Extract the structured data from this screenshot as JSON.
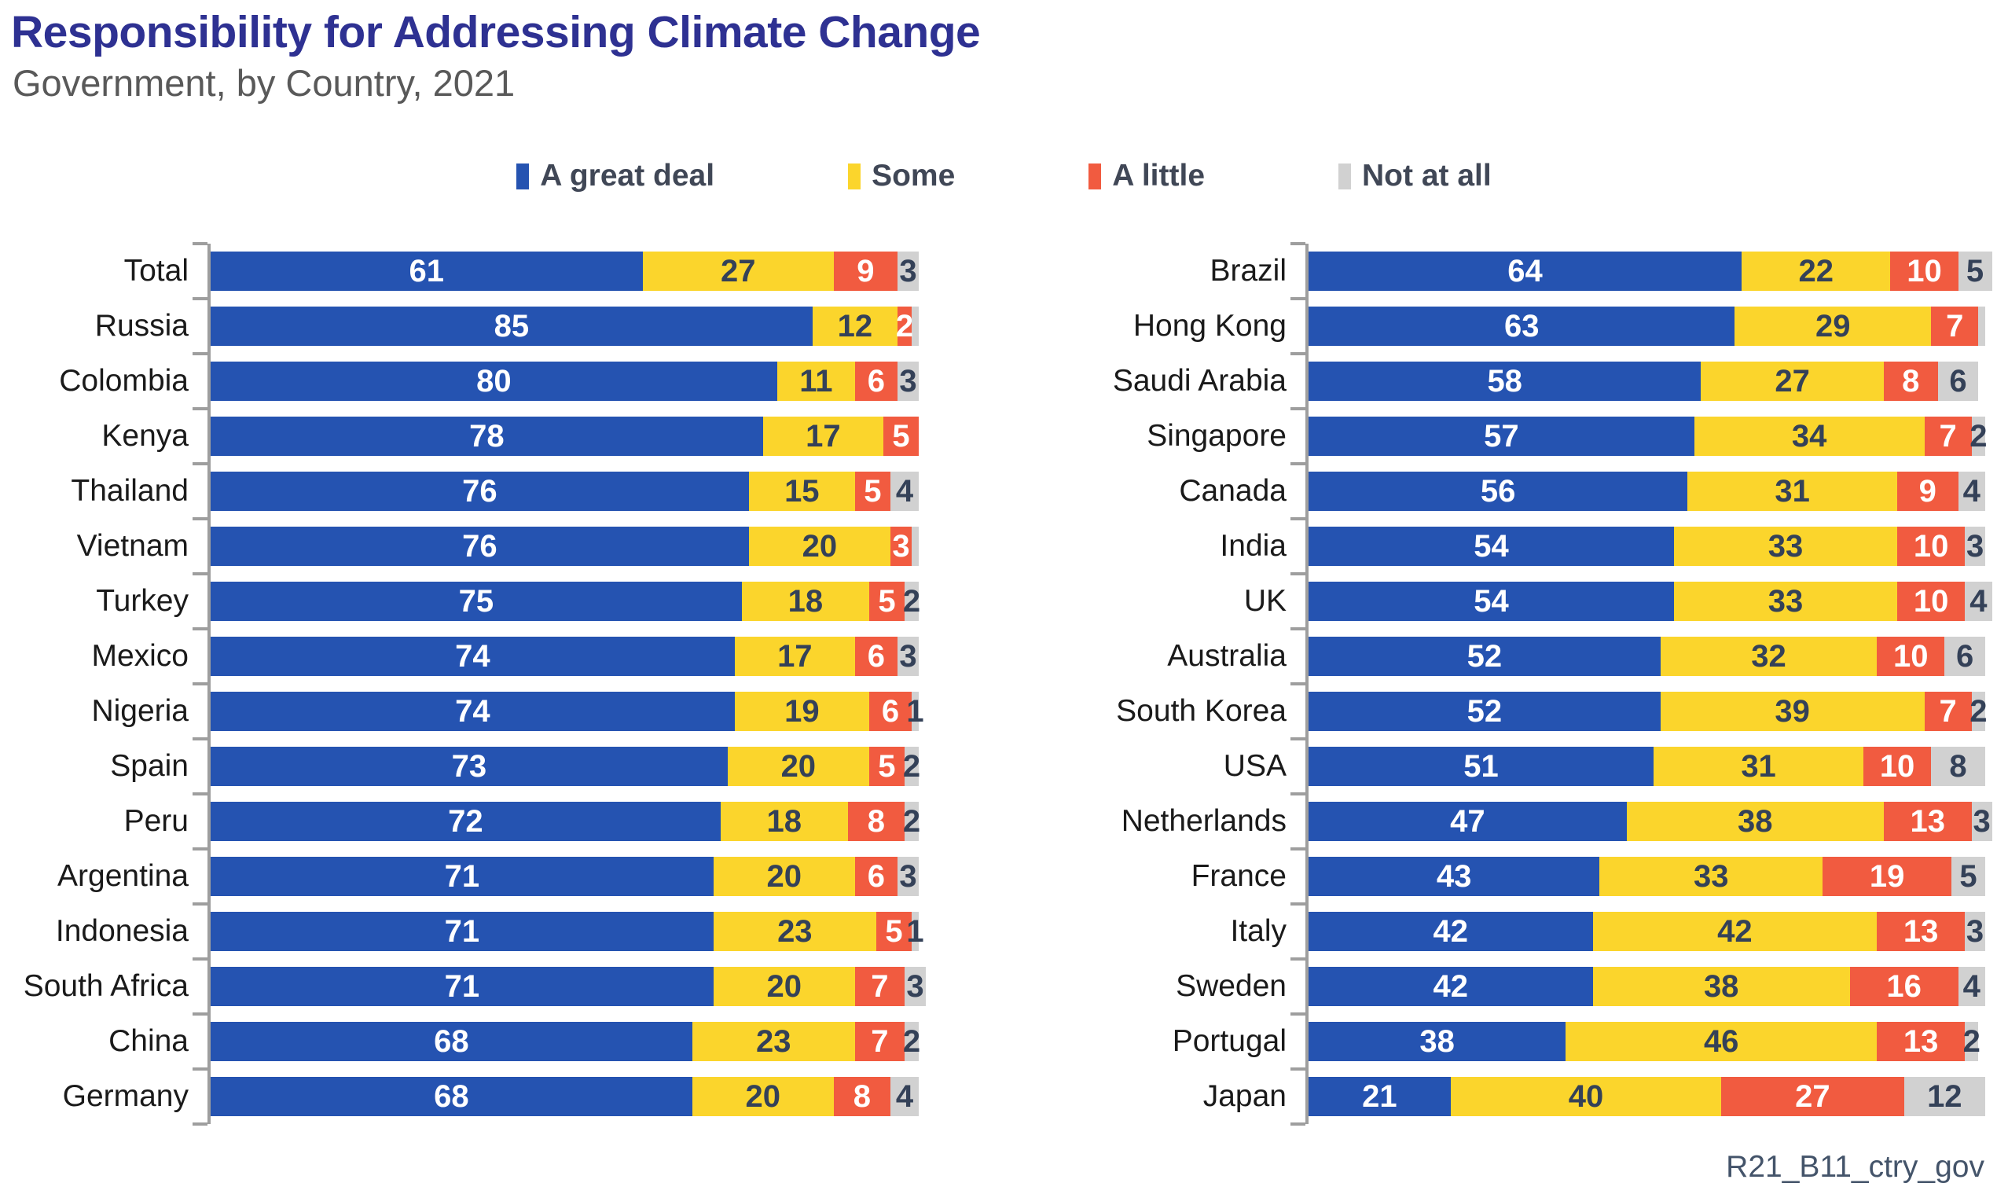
{
  "chart_data": {
    "type": "bar",
    "stacked": true,
    "orientation": "horizontal",
    "title": "Responsibility for Addressing Climate Change",
    "subtitle": "Government, by Country, 2021",
    "footnote": "R21_B11_ctry_gov",
    "unit": "percent",
    "axis_range": [
      0,
      100
    ],
    "legend_position": "top",
    "grid": false,
    "legend": [
      {
        "label": "A great deal",
        "color": "#2553B1"
      },
      {
        "label": "Some",
        "color": "#FBD52C"
      },
      {
        "label": "A little",
        "color": "#F15B40"
      },
      {
        "label": "Not at all",
        "color": "#D1D1D1"
      }
    ],
    "panels": [
      {
        "rows": [
          {
            "category": "Total",
            "values": [
              61,
              27,
              9,
              3
            ],
            "value_labels": [
              "61",
              "27",
              "9",
              "3"
            ]
          },
          {
            "category": "Russia",
            "values": [
              85,
              12,
              2,
              1
            ],
            "value_labels": [
              "85",
              "12",
              "2",
              ""
            ]
          },
          {
            "category": "Colombia",
            "values": [
              80,
              11,
              6,
              3
            ],
            "value_labels": [
              "80",
              "11",
              "6",
              "3"
            ]
          },
          {
            "category": "Kenya",
            "values": [
              78,
              17,
              5,
              0
            ],
            "value_labels": [
              "78",
              "17",
              "5",
              ""
            ]
          },
          {
            "category": "Thailand",
            "values": [
              76,
              15,
              5,
              4
            ],
            "value_labels": [
              "76",
              "15",
              "5",
              "4"
            ]
          },
          {
            "category": "Vietnam",
            "values": [
              76,
              20,
              3,
              1
            ],
            "value_labels": [
              "76",
              "20",
              "3",
              ""
            ]
          },
          {
            "category": "Turkey",
            "values": [
              75,
              18,
              5,
              2
            ],
            "value_labels": [
              "75",
              "18",
              "5",
              "2"
            ]
          },
          {
            "category": "Mexico",
            "values": [
              74,
              17,
              6,
              3
            ],
            "value_labels": [
              "74",
              "17",
              "6",
              "3"
            ]
          },
          {
            "category": "Nigeria",
            "values": [
              74,
              19,
              6,
              1
            ],
            "value_labels": [
              "74",
              "19",
              "6",
              "1"
            ]
          },
          {
            "category": "Spain",
            "values": [
              73,
              20,
              5,
              2
            ],
            "value_labels": [
              "73",
              "20",
              "5",
              "2"
            ]
          },
          {
            "category": "Peru",
            "values": [
              72,
              18,
              8,
              2
            ],
            "value_labels": [
              "72",
              "18",
              "8",
              "2"
            ]
          },
          {
            "category": "Argentina",
            "values": [
              71,
              20,
              6,
              3
            ],
            "value_labels": [
              "71",
              "20",
              "6",
              "3"
            ]
          },
          {
            "category": "Indonesia",
            "values": [
              71,
              23,
              5,
              1
            ],
            "value_labels": [
              "71",
              "23",
              "5",
              "1"
            ]
          },
          {
            "category": "South Africa",
            "values": [
              71,
              20,
              7,
              3
            ],
            "value_labels": [
              "71",
              "20",
              "7",
              "3"
            ]
          },
          {
            "category": "China",
            "values": [
              68,
              23,
              7,
              2
            ],
            "value_labels": [
              "68",
              "23",
              "7",
              "2"
            ]
          },
          {
            "category": "Germany",
            "values": [
              68,
              20,
              8,
              4
            ],
            "value_labels": [
              "68",
              "20",
              "8",
              "4"
            ]
          }
        ]
      },
      {
        "rows": [
          {
            "category": "Brazil",
            "values": [
              64,
              22,
              10,
              5
            ],
            "value_labels": [
              "64",
              "22",
              "10",
              "5"
            ]
          },
          {
            "category": "Hong Kong",
            "values": [
              63,
              29,
              7,
              1
            ],
            "value_labels": [
              "63",
              "29",
              "7",
              ""
            ]
          },
          {
            "category": "Saudi Arabia",
            "values": [
              58,
              27,
              8,
              6
            ],
            "value_labels": [
              "58",
              "27",
              "8",
              "6"
            ]
          },
          {
            "category": "Singapore",
            "values": [
              57,
              34,
              7,
              2
            ],
            "value_labels": [
              "57",
              "34",
              "7",
              "2"
            ]
          },
          {
            "category": "Canada",
            "values": [
              56,
              31,
              9,
              4
            ],
            "value_labels": [
              "56",
              "31",
              "9",
              "4"
            ]
          },
          {
            "category": "India",
            "values": [
              54,
              33,
              10,
              3
            ],
            "value_labels": [
              "54",
              "33",
              "10",
              "3"
            ]
          },
          {
            "category": "UK",
            "values": [
              54,
              33,
              10,
              4
            ],
            "value_labels": [
              "54",
              "33",
              "10",
              "4"
            ]
          },
          {
            "category": "Australia",
            "values": [
              52,
              32,
              10,
              6
            ],
            "value_labels": [
              "52",
              "32",
              "10",
              "6"
            ]
          },
          {
            "category": "South Korea",
            "values": [
              52,
              39,
              7,
              2
            ],
            "value_labels": [
              "52",
              "39",
              "7",
              "2"
            ]
          },
          {
            "category": "USA",
            "values": [
              51,
              31,
              10,
              8
            ],
            "value_labels": [
              "51",
              "31",
              "10",
              "8"
            ]
          },
          {
            "category": "Netherlands",
            "values": [
              47,
              38,
              13,
              3
            ],
            "value_labels": [
              "47",
              "38",
              "13",
              "3"
            ]
          },
          {
            "category": "France",
            "values": [
              43,
              33,
              19,
              5
            ],
            "value_labels": [
              "43",
              "33",
              "19",
              "5"
            ]
          },
          {
            "category": "Italy",
            "values": [
              42,
              42,
              13,
              3
            ],
            "value_labels": [
              "42",
              "42",
              "13",
              "3"
            ]
          },
          {
            "category": "Sweden",
            "values": [
              42,
              38,
              16,
              4
            ],
            "value_labels": [
              "42",
              "38",
              "16",
              "4"
            ]
          },
          {
            "category": "Portugal",
            "values": [
              38,
              46,
              13,
              2
            ],
            "value_labels": [
              "38",
              "46",
              "13",
              "2"
            ]
          },
          {
            "category": "Japan",
            "values": [
              21,
              40,
              27,
              12
            ],
            "value_labels": [
              "21",
              "40",
              "27",
              "12"
            ]
          }
        ]
      }
    ],
    "styles": {
      "title_color": "#2E3192",
      "subtitle_color": "#595959",
      "footnote_color": "#44546A",
      "axis_color": "#9E9E9E",
      "category_label_color": "#1A1A1A",
      "value_label_dark_color": "#344158",
      "value_label_light_color": "#FFFFFF",
      "legend_text_color": "#404756",
      "background_color": "#FFFFFF"
    }
  }
}
